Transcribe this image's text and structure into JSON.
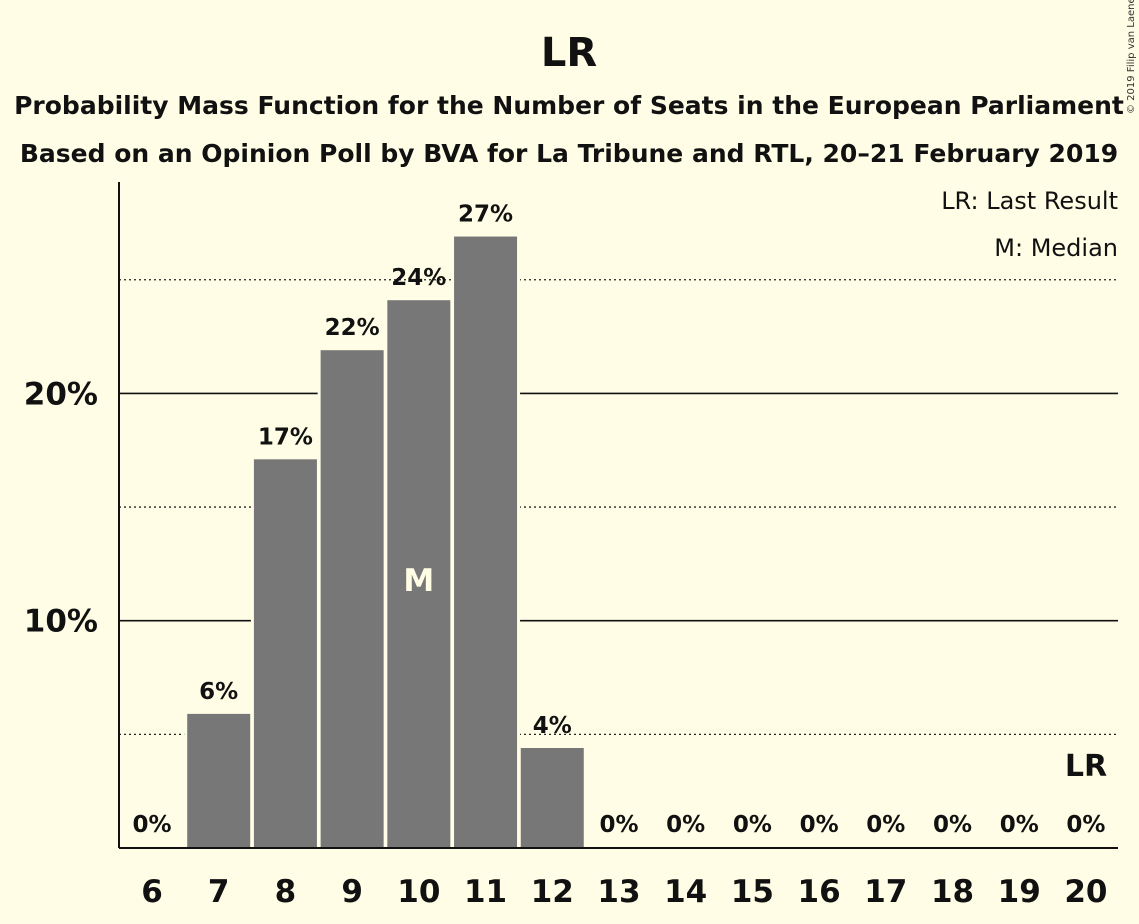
{
  "chart_data": {
    "type": "bar",
    "title": "LR",
    "subtitle_lines": [
      "Probability Mass Function for the Number of Seats in the European Parliament",
      "Based on an Opinion Poll by BVA for La Tribune and RTL, 20–21 February 2019"
    ],
    "copyright": "© 2019 Filip van Laenen",
    "legend": [
      "LR: Last Result",
      "M: Median"
    ],
    "legend_position": "top-right",
    "categories": [
      "6",
      "7",
      "8",
      "9",
      "10",
      "11",
      "12",
      "13",
      "14",
      "15",
      "16",
      "17",
      "18",
      "19",
      "20"
    ],
    "values": [
      0,
      5.9,
      17.1,
      21.9,
      24.1,
      26.9,
      4.4,
      0,
      0,
      0,
      0,
      0,
      0,
      0,
      0
    ],
    "value_labels": [
      "0%",
      "6%",
      "17%",
      "22%",
      "24%",
      "27%",
      "4%",
      "0%",
      "0%",
      "0%",
      "0%",
      "0%",
      "0%",
      "0%",
      "0%"
    ],
    "ylim": [
      0,
      29.3
    ],
    "y_ticks": [
      {
        "value": 10,
        "label": "10%"
      },
      {
        "value": 20,
        "label": "20%"
      }
    ],
    "minor_gridlines": [
      5,
      15,
      25
    ],
    "median_category": "10",
    "median_label": "M",
    "last_result_category": "20",
    "last_result_label": "LR",
    "bar_color": "#777777",
    "background": "#fffde5"
  }
}
